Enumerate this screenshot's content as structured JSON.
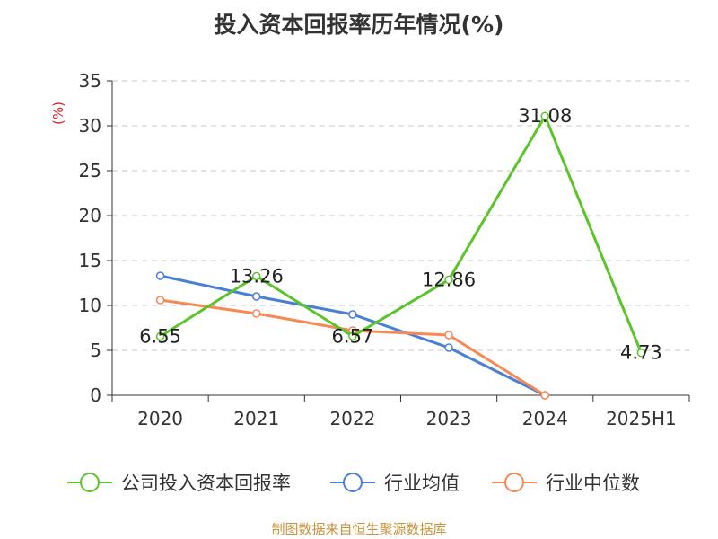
{
  "chart_data": {
    "type": "line",
    "title": "投入资本回报率历年情况(%)",
    "ylabel": "(%)",
    "xlabel": "",
    "categories": [
      "2020",
      "2021",
      "2022",
      "2023",
      "2024",
      "2025H1"
    ],
    "ylim": [
      0,
      35
    ],
    "yticks": [
      0,
      5,
      10,
      15,
      20,
      25,
      30,
      35
    ],
    "grid": true,
    "legend_position": "bottom",
    "series": [
      {
        "name": "公司投入资本回报率",
        "color": "#5cc42b",
        "values": [
          6.55,
          13.26,
          6.57,
          12.86,
          31.08,
          4.73
        ],
        "labels": [
          "6.55",
          "13.26",
          "6.57",
          "12.86",
          "31.08",
          "4.73"
        ]
      },
      {
        "name": "行业均值",
        "color": "#4a7fd6",
        "values": [
          13.3,
          11.0,
          9.0,
          5.3,
          0.0,
          null
        ]
      },
      {
        "name": "行业中位数",
        "color": "#f58a55",
        "values": [
          10.6,
          9.1,
          7.2,
          6.7,
          0.0,
          null
        ]
      }
    ],
    "source": "制图数据来自恒生聚源数据库"
  }
}
